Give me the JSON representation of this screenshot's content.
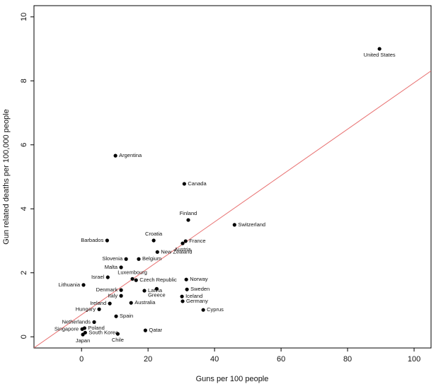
{
  "chart_data": {
    "type": "scatter",
    "x_label": "Guns per 100 people",
    "y_label": "Gun related deaths per 100,000 people",
    "xlim": [
      -14.3,
      105.1
    ],
    "ylim": [
      -0.35,
      10.35
    ],
    "xticks": [
      0,
      20,
      40,
      60,
      80,
      100
    ],
    "yticks": [
      0,
      2,
      4,
      6,
      8,
      10
    ],
    "color": "#000000",
    "labels": [
      "United States",
      "Argentina",
      "Canada",
      "Finland",
      "Switzerland",
      "Croatia",
      "Barbados",
      "France",
      "Austria",
      "New Zealand",
      "Slovenia",
      "Belgium",
      "Malta",
      "Luxembourg",
      "Israel",
      "Czech Republic",
      "Norway",
      "Lithuania",
      "Greece",
      "Denmark",
      "Latvia",
      "Sweden",
      "Italy",
      "Iceland",
      "Ireland",
      "Australia",
      "Germany",
      "Hungary",
      "Cyprus",
      "Spain",
      "Netherlands",
      "Poland",
      "Singapore",
      "South Korea",
      "Japan",
      "Chile",
      "Qatar"
    ],
    "x": [
      89.6,
      10.2,
      30.9,
      32.1,
      46.0,
      21.7,
      7.7,
      31.3,
      30.4,
      22.8,
      13.4,
      17.2,
      11.9,
      15.3,
      7.9,
      16.4,
      31.5,
      0.6,
      22.6,
      11.9,
      18.9,
      31.7,
      11.9,
      30.2,
      8.5,
      14.9,
      30.4,
      5.3,
      36.6,
      10.4,
      3.8,
      0.9,
      0.2,
      1.1,
      0.4,
      10.9,
      19.2
    ],
    "values": [
      9.0,
      5.66,
      4.78,
      3.65,
      3.5,
      3.01,
      3.01,
      2.99,
      2.92,
      2.65,
      2.43,
      2.43,
      2.17,
      1.81,
      1.86,
      1.77,
      1.79,
      1.62,
      1.5,
      1.46,
      1.44,
      1.48,
      1.28,
      1.26,
      1.04,
      1.06,
      1.11,
      0.86,
      0.84,
      0.64,
      0.46,
      0.27,
      0.24,
      0.13,
      0.07,
      0.09,
      0.2
    ],
    "trend_line": {
      "intercept": 0.69,
      "slope": 0.0725,
      "color": "#e87070"
    }
  }
}
